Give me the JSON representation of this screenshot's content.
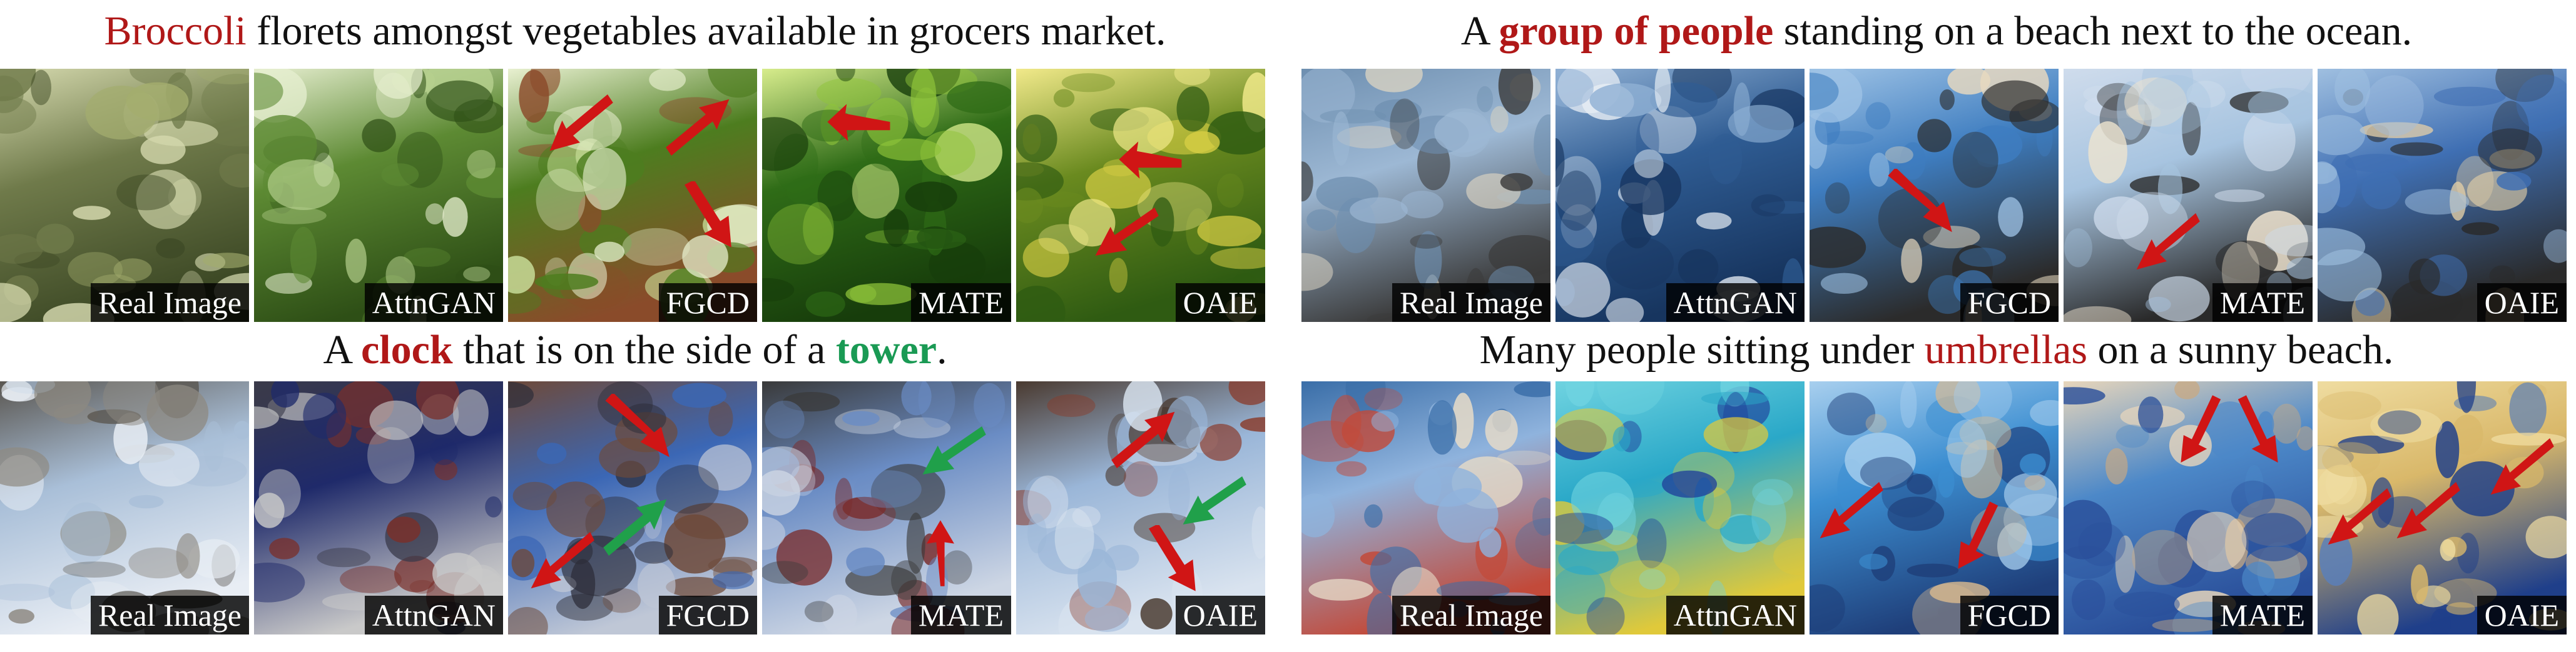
{
  "panels": [
    {
      "caption": {
        "pre": "",
        "hl1": "Broccoli",
        "mid": " florets amongst vegetables available in grocers market.",
        "hl2": "",
        "post": ""
      },
      "tiles": [
        {
          "label": "Real Image",
          "palette": [
            "#6f7a4a",
            "#a3ad6e",
            "#3e4a26",
            "#d5d9ae"
          ]
        },
        {
          "label": "AttnGAN",
          "palette": [
            "#5d8a33",
            "#b6d08e",
            "#2e4f16",
            "#e6eecf"
          ]
        },
        {
          "label": "FGCD",
          "palette": [
            "#4d7d1f",
            "#c9df9a",
            "#8a4b2a",
            "#e8f0d0"
          ]
        },
        {
          "label": "MATE",
          "palette": [
            "#2f6c17",
            "#8fc43a",
            "#173d0b",
            "#d7ec8c"
          ]
        },
        {
          "label": "OAIE",
          "palette": [
            "#6a8a1f",
            "#d8cf45",
            "#2f5b12",
            "#f1e98a"
          ]
        }
      ]
    },
    {
      "caption": {
        "pre": "A ",
        "hl1": "group of people",
        "mid": " standing on a beach next to the ocean.",
        "hl2": "",
        "post": ""
      },
      "tiles": [
        {
          "label": "Real Image",
          "palette": [
            "#9db8d4",
            "#d9d2c2",
            "#3b3b3b",
            "#6e8fb0"
          ]
        },
        {
          "label": "AttnGAN",
          "palette": [
            "#2f5c93",
            "#e6edf4",
            "#17355f",
            "#8fb0d4"
          ]
        },
        {
          "label": "FGCD",
          "palette": [
            "#3e7dc0",
            "#e8d9bf",
            "#2b2b2b",
            "#9fc3e5"
          ]
        },
        {
          "label": "MATE",
          "palette": [
            "#a7c4e0",
            "#efe4cf",
            "#2a2a2a",
            "#cfdcec"
          ]
        },
        {
          "label": "OAIE",
          "palette": [
            "#3f6fb3",
            "#e3cfa8",
            "#2a2a2a",
            "#9fbfe0"
          ]
        }
      ]
    },
    {
      "caption": {
        "pre": "A ",
        "hl1": "clock",
        "mid": " that is on the side of a ",
        "hl2": "tower",
        "post": "."
      },
      "tiles": [
        {
          "label": "Real Image",
          "palette": [
            "#a9bfd8",
            "#8e8a82",
            "#e8edf4",
            "#5a5650"
          ]
        },
        {
          "label": "AttnGAN",
          "palette": [
            "#1f2a6a",
            "#7a2f2a",
            "#c9c9c9",
            "#3a3a4a"
          ]
        },
        {
          "label": "FGCD",
          "palette": [
            "#3b67b5",
            "#2d2d38",
            "#bfc7d6",
            "#6e4a3a"
          ]
        },
        {
          "label": "MATE",
          "palette": [
            "#6a8cc4",
            "#7a2e2e",
            "#cdd6e4",
            "#3a3a3a"
          ]
        },
        {
          "label": "OAIE",
          "palette": [
            "#9ab6d8",
            "#8a3a2a",
            "#d9e3ef",
            "#4a3a30"
          ]
        }
      ]
    },
    {
      "caption": {
        "pre": "Many people sitting under ",
        "hl1": "umbrellas",
        "mid": " on a sunny beach.",
        "hl2": "",
        "post": ""
      },
      "tiles": [
        {
          "label": "Real Image",
          "palette": [
            "#8fb3dd",
            "#e8dcc8",
            "#c24a3a",
            "#3a6ea8"
          ]
        },
        {
          "label": "AttnGAN",
          "palette": [
            "#2aa8c8",
            "#1f3f9a",
            "#e0c93a",
            "#6fd3e0"
          ]
        },
        {
          "label": "FGCD",
          "palette": [
            "#3c8ed1",
            "#d9b98f",
            "#1f3f7a",
            "#a8cfee"
          ]
        },
        {
          "label": "MATE",
          "palette": [
            "#4c88c8",
            "#c9a982",
            "#2a4f9a",
            "#e8d6bb"
          ]
        },
        {
          "label": "OAIE",
          "palette": [
            "#d9b86a",
            "#5a7fb8",
            "#1f3f8a",
            "#efdca0"
          ]
        }
      ]
    }
  ]
}
